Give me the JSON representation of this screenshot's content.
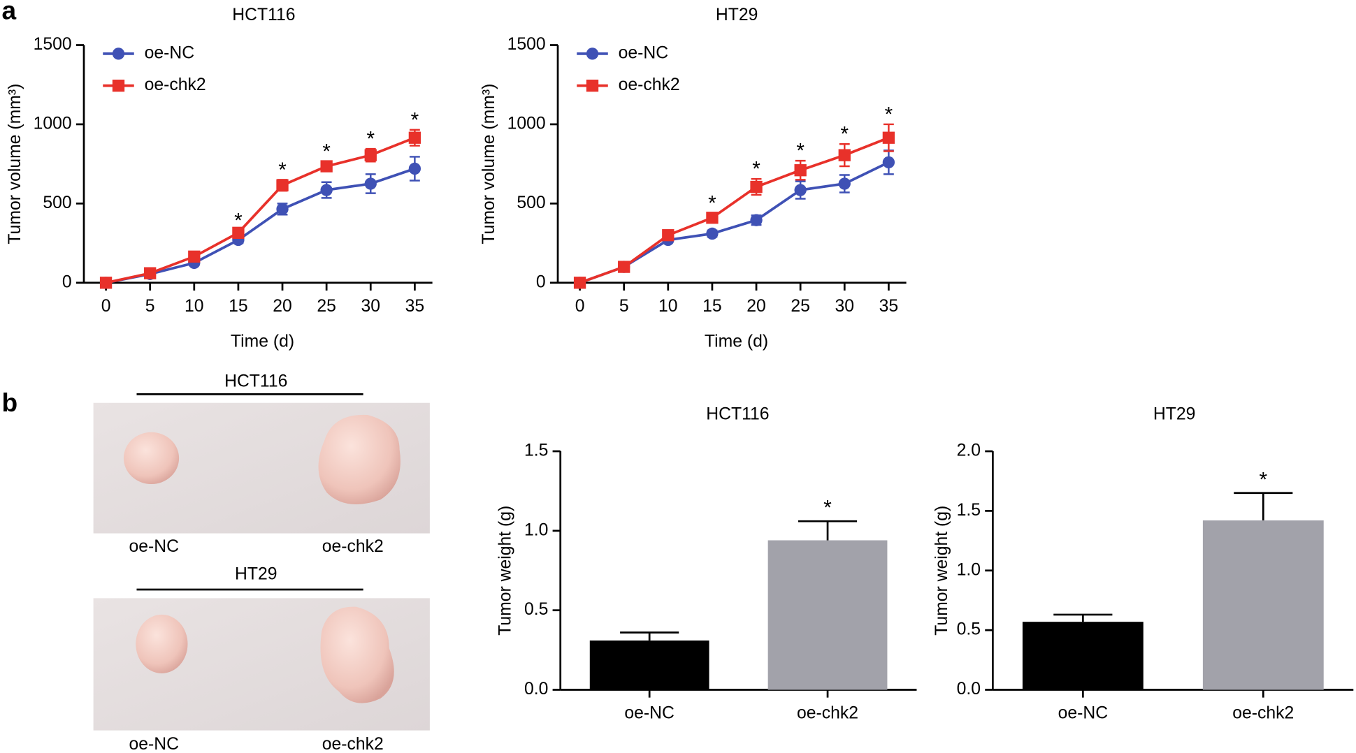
{
  "panels": [
    "a",
    "b"
  ],
  "photos": [
    {
      "title": "HCT116",
      "labels": [
        "oe-NC",
        "oe-chk2"
      ]
    },
    {
      "title": "HT29",
      "labels": [
        "oe-NC",
        "oe-chk2"
      ]
    }
  ],
  "chart_data": [
    {
      "type": "line",
      "title": "HCT116",
      "x_label": "Time (d)",
      "y_label": "Tumor volume (mm³)",
      "x": [
        0,
        5,
        10,
        15,
        20,
        25,
        30,
        35
      ],
      "xlim": [
        -2.5,
        37
      ],
      "xticks": [
        0,
        5,
        10,
        15,
        20,
        25,
        30,
        35
      ],
      "ylim": [
        0,
        1500
      ],
      "yticks": [
        0,
        500,
        1000,
        1500
      ],
      "legend": "upper left",
      "series": [
        {
          "name": "oe-NC",
          "color": "#3f51b5",
          "marker": "circle",
          "values": [
            0,
            55,
            125,
            270,
            465,
            585,
            625,
            720
          ],
          "errors": [
            0,
            10,
            15,
            20,
            35,
            50,
            60,
            75
          ]
        },
        {
          "name": "oe-chk2",
          "color": "#e8312a",
          "marker": "square",
          "values": [
            0,
            60,
            165,
            315,
            615,
            735,
            805,
            915
          ],
          "errors": [
            0,
            10,
            15,
            15,
            35,
            30,
            40,
            50
          ]
        }
      ],
      "annotations": [
        {
          "text": "*",
          "x": 15
        },
        {
          "text": "*",
          "x": 20
        },
        {
          "text": "*",
          "x": 25
        },
        {
          "text": "*",
          "x": 30
        },
        {
          "text": "*",
          "x": 35
        }
      ]
    },
    {
      "type": "line",
      "title": "HT29",
      "x_label": "Time (d)",
      "y_label": "Tumor volume (mm³)",
      "x": [
        0,
        5,
        10,
        15,
        20,
        25,
        30,
        35
      ],
      "xlim": [
        -2.5,
        37
      ],
      "xticks": [
        0,
        5,
        10,
        15,
        20,
        25,
        30,
        35
      ],
      "ylim": [
        0,
        1500
      ],
      "yticks": [
        0,
        500,
        1000,
        1500
      ],
      "legend": "upper left",
      "series": [
        {
          "name": "oe-NC",
          "color": "#3f51b5",
          "marker": "circle",
          "values": [
            0,
            100,
            270,
            310,
            395,
            585,
            625,
            760
          ],
          "errors": [
            0,
            10,
            15,
            20,
            30,
            55,
            55,
            75
          ]
        },
        {
          "name": "oe-chk2",
          "color": "#e8312a",
          "marker": "square",
          "values": [
            0,
            100,
            300,
            410,
            605,
            710,
            805,
            915
          ],
          "errors": [
            0,
            10,
            10,
            30,
            50,
            60,
            70,
            85
          ]
        }
      ],
      "annotations": [
        {
          "text": "*",
          "x": 15
        },
        {
          "text": "*",
          "x": 20
        },
        {
          "text": "*",
          "x": 25
        },
        {
          "text": "*",
          "x": 30
        },
        {
          "text": "*",
          "x": 35
        }
      ]
    },
    {
      "type": "bar",
      "title": "HCT116",
      "y_label": "Tumor weight (g)",
      "categories": [
        "oe-NC",
        "oe-chk2"
      ],
      "values": [
        0.31,
        0.94
      ],
      "errors": [
        0.05,
        0.12
      ],
      "colors": [
        "#000000",
        "#a2a2aa"
      ],
      "ylim": [
        0,
        1.5
      ],
      "yticks": [
        {
          "value": 0,
          "label": "0.0"
        },
        {
          "value": 0.5,
          "label": "0.5"
        },
        {
          "value": 1,
          "label": "1.0"
        },
        {
          "value": 1.5,
          "label": "1.5"
        }
      ],
      "annotations": [
        {
          "text": "*",
          "category": "oe-chk2"
        }
      ]
    },
    {
      "type": "bar",
      "title": "HT29",
      "y_label": "Tumor weight (g)",
      "categories": [
        "oe-NC",
        "oe-chk2"
      ],
      "values": [
        0.57,
        1.42
      ],
      "errors": [
        0.06,
        0.23
      ],
      "colors": [
        "#000000",
        "#a2a2aa"
      ],
      "ylim": [
        0,
        2
      ],
      "yticks": [
        {
          "value": 0,
          "label": "0.0"
        },
        {
          "value": 0.5,
          "label": "0.5"
        },
        {
          "value": 1,
          "label": "1.0"
        },
        {
          "value": 1.5,
          "label": "1.5"
        },
        {
          "value": 2,
          "label": "2.0"
        }
      ],
      "annotations": [
        {
          "text": "*",
          "category": "oe-chk2"
        }
      ]
    }
  ]
}
